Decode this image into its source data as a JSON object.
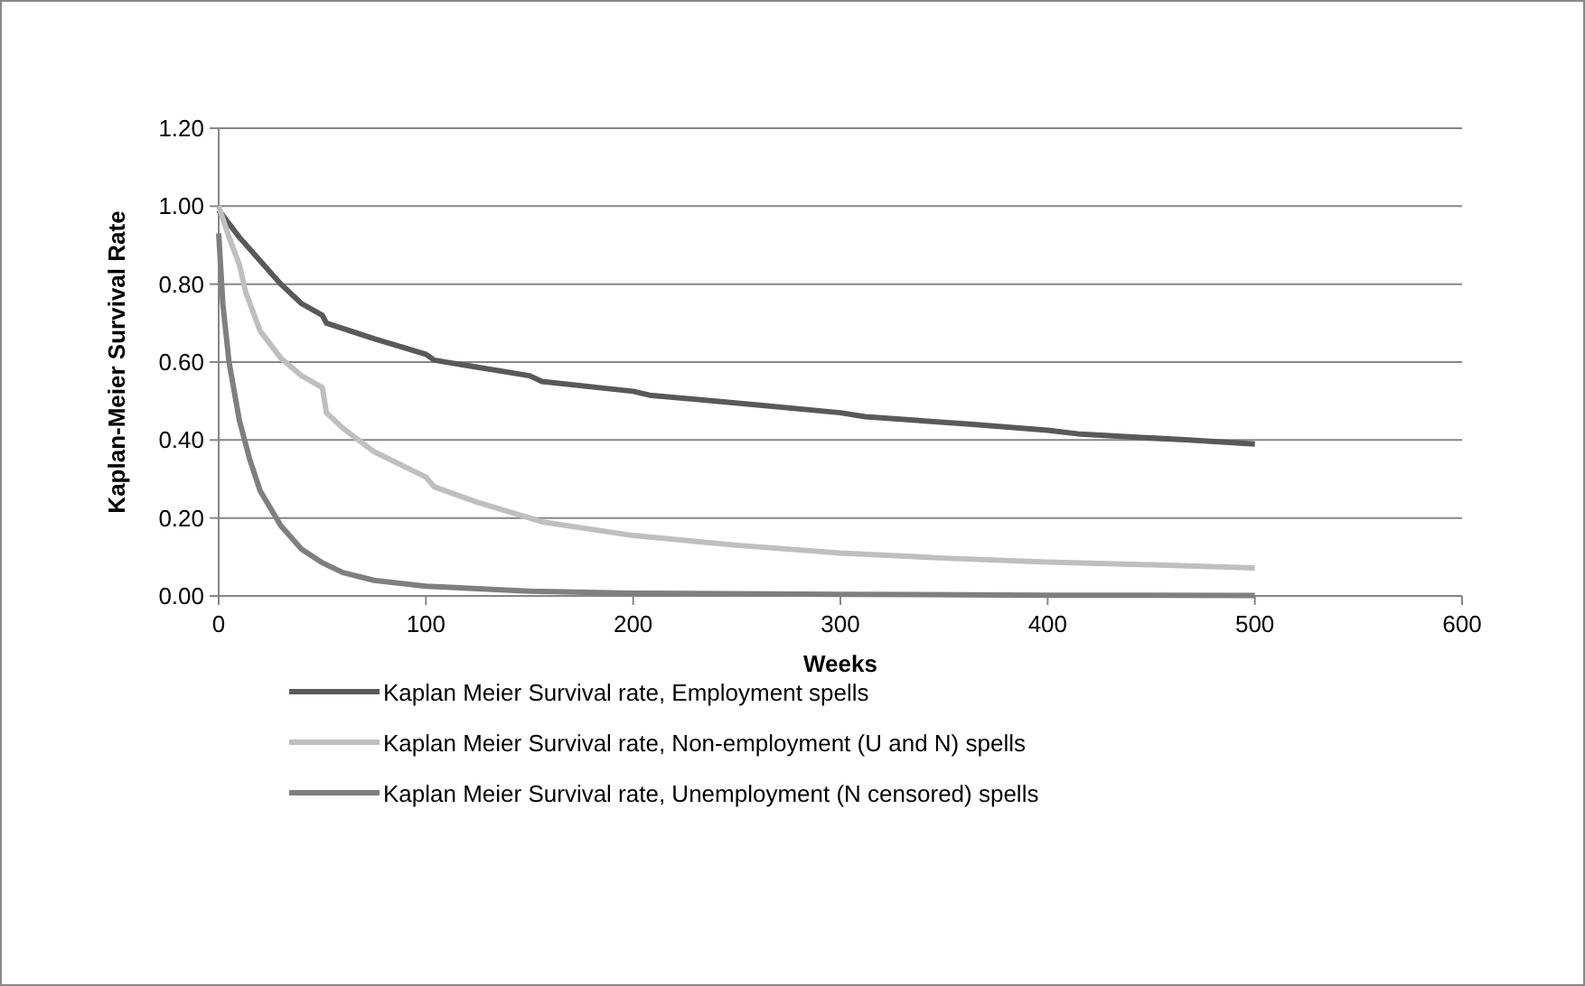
{
  "chart_data": {
    "type": "line",
    "xlabel": "Weeks",
    "ylabel": "Kaplan-Meier Survival Rate",
    "xlim": [
      0,
      600
    ],
    "xticks": [
      0,
      100,
      200,
      300,
      400,
      500,
      600
    ],
    "ylim": [
      0,
      1.2
    ],
    "yticks": [
      {
        "value": 0,
        "label": "0.00"
      },
      {
        "value": 0.2,
        "label": "0.20"
      },
      {
        "value": 0.4,
        "label": "0.40"
      },
      {
        "value": 0.6,
        "label": "0.60"
      },
      {
        "value": 0.8,
        "label": "0.80"
      },
      {
        "value": 1,
        "label": "1.00"
      },
      {
        "value": 1.2,
        "label": "1.20"
      }
    ],
    "grid": "y",
    "legend": "bottom",
    "marker": "none",
    "line_style": "solid",
    "series": [
      {
        "name": "Kaplan Meier Survival rate, Employment spells",
        "color": "#595959",
        "x": [
          0,
          10,
          20,
          30,
          40,
          50,
          52,
          75,
          100,
          104,
          150,
          156,
          200,
          208,
          260,
          300,
          312,
          364,
          400,
          416,
          468,
          500
        ],
        "values": [
          0.99,
          0.92,
          0.86,
          0.8,
          0.75,
          0.72,
          0.7,
          0.66,
          0.62,
          0.605,
          0.565,
          0.55,
          0.525,
          0.515,
          0.49,
          0.47,
          0.46,
          0.44,
          0.425,
          0.415,
          0.4,
          0.39
        ]
      },
      {
        "name": "Kaplan Meier Survival rate, Non-employment (U and N) spells",
        "color": "#bfbfbf",
        "x": [
          0,
          5,
          10,
          13,
          20,
          30,
          40,
          50,
          52,
          60,
          75,
          100,
          104,
          125,
          150,
          156,
          200,
          250,
          300,
          350,
          400,
          450,
          500
        ],
        "values": [
          1,
          0.92,
          0.85,
          0.78,
          0.68,
          0.61,
          0.565,
          0.535,
          0.47,
          0.43,
          0.37,
          0.305,
          0.28,
          0.24,
          0.2,
          0.19,
          0.155,
          0.13,
          0.11,
          0.097,
          0.087,
          0.08,
          0.072
        ]
      },
      {
        "name": "Kaplan Meier Survival rate, Unemployment (N censored) spells",
        "color": "#7f7f7f",
        "x": [
          0,
          2,
          5,
          10,
          15,
          20,
          30,
          40,
          50,
          60,
          75,
          100,
          150,
          200,
          300,
          400,
          500
        ],
        "values": [
          0.93,
          0.75,
          0.6,
          0.45,
          0.35,
          0.27,
          0.18,
          0.12,
          0.085,
          0.06,
          0.04,
          0.025,
          0.012,
          0.007,
          0.004,
          0.002,
          0.001
        ]
      }
    ]
  }
}
